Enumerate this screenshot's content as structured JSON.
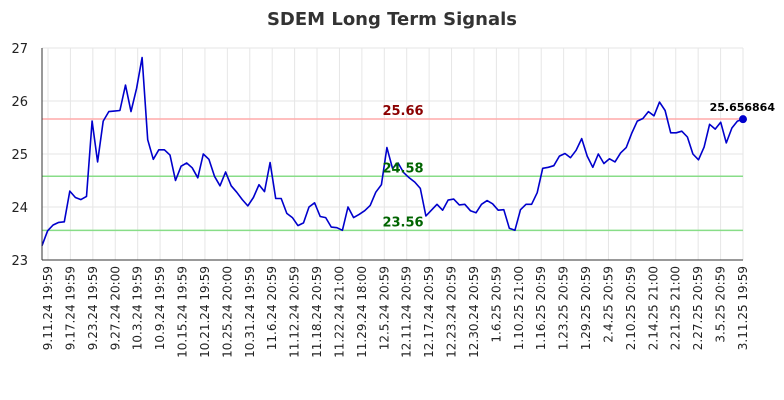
{
  "chart_data": {
    "type": "line",
    "title": "SDEM Long Term Signals",
    "xlabel": "",
    "ylabel": "",
    "ylim": [
      23,
      27
    ],
    "yticks": [
      23,
      24,
      25,
      26,
      27
    ],
    "grid": true,
    "x_tick_labels": [
      "9.11.24 19:59",
      "9.17.24 19:59",
      "9.23.24 19:59",
      "9.27.24 20:00",
      "10.3.24 19:59",
      "10.9.24 19:59",
      "10.15.24 19:59",
      "10.21.24 19:59",
      "10.25.24 20:00",
      "10.31.24 19:59",
      "11.6.24 20:59",
      "11.12.24 20:59",
      "11.18.24 20:59",
      "11.22.24 21:00",
      "11.29.24 18:00",
      "12.5.24 20:59",
      "12.11.24 20:59",
      "12.17.24 20:59",
      "12.23.24 20:59",
      "12.30.24 20:59",
      "1.6.25 20:59",
      "1.10.25 21:00",
      "1.16.25 20:59",
      "1.23.25 20:59",
      "1.29.25 20:59",
      "2.4.25 20:59",
      "2.10.25 20:59",
      "2.14.25 21:00",
      "2.21.25 21:00",
      "2.27.25 20:59",
      "3.5.25 20:59",
      "3.11.25 19:59"
    ],
    "series": [
      {
        "name": "",
        "color": "#0000cc",
        "values": [
          23.27,
          23.55,
          23.66,
          23.71,
          23.72,
          24.3,
          24.18,
          24.14,
          24.2,
          25.62,
          24.85,
          25.62,
          25.8,
          25.81,
          25.82,
          26.3,
          25.8,
          26.24,
          26.82,
          25.27,
          24.9,
          25.08,
          25.08,
          24.98,
          24.5,
          24.77,
          24.83,
          24.74,
          24.55,
          25.0,
          24.9,
          24.58,
          24.4,
          24.66,
          24.4,
          24.28,
          24.14,
          24.02,
          24.18,
          24.42,
          24.29,
          24.84,
          24.16,
          24.16,
          23.88,
          23.8,
          23.65,
          23.7,
          24.0,
          24.08,
          23.82,
          23.8,
          23.62,
          23.61,
          23.56,
          24.0,
          23.8,
          23.86,
          23.93,
          24.03,
          24.28,
          24.42,
          25.12,
          24.73,
          24.83,
          24.65,
          24.55,
          24.47,
          24.35,
          23.83,
          23.94,
          24.05,
          23.94,
          24.13,
          24.15,
          24.04,
          24.05,
          23.93,
          23.89,
          24.05,
          24.12,
          24.06,
          23.94,
          23.95,
          23.6,
          23.56,
          23.95,
          24.05,
          24.05,
          24.27,
          24.73,
          24.75,
          24.78,
          24.96,
          25.01,
          24.93,
          25.07,
          25.29,
          24.96,
          24.75,
          25.0,
          24.82,
          24.91,
          24.85,
          25.02,
          25.12,
          25.39,
          25.62,
          25.67,
          25.8,
          25.72,
          25.98,
          25.82,
          25.4,
          25.4,
          25.43,
          25.32,
          25.0,
          24.89,
          25.13,
          25.56,
          25.47,
          25.6,
          25.21,
          25.49,
          25.62,
          25.656864
        ]
      }
    ],
    "levels": [
      {
        "value": 25.66,
        "label": "25.66",
        "color": "#ffaaaa",
        "label_color": "#8b0000"
      },
      {
        "value": 24.58,
        "label": "24.58",
        "color": "#88dd88",
        "label_color": "#006400"
      },
      {
        "value": 23.56,
        "label": "23.56",
        "color": "#88dd88",
        "label_color": "#006400"
      }
    ],
    "last_value_label": "25.656864",
    "last_marker_color": "#0000cc"
  }
}
